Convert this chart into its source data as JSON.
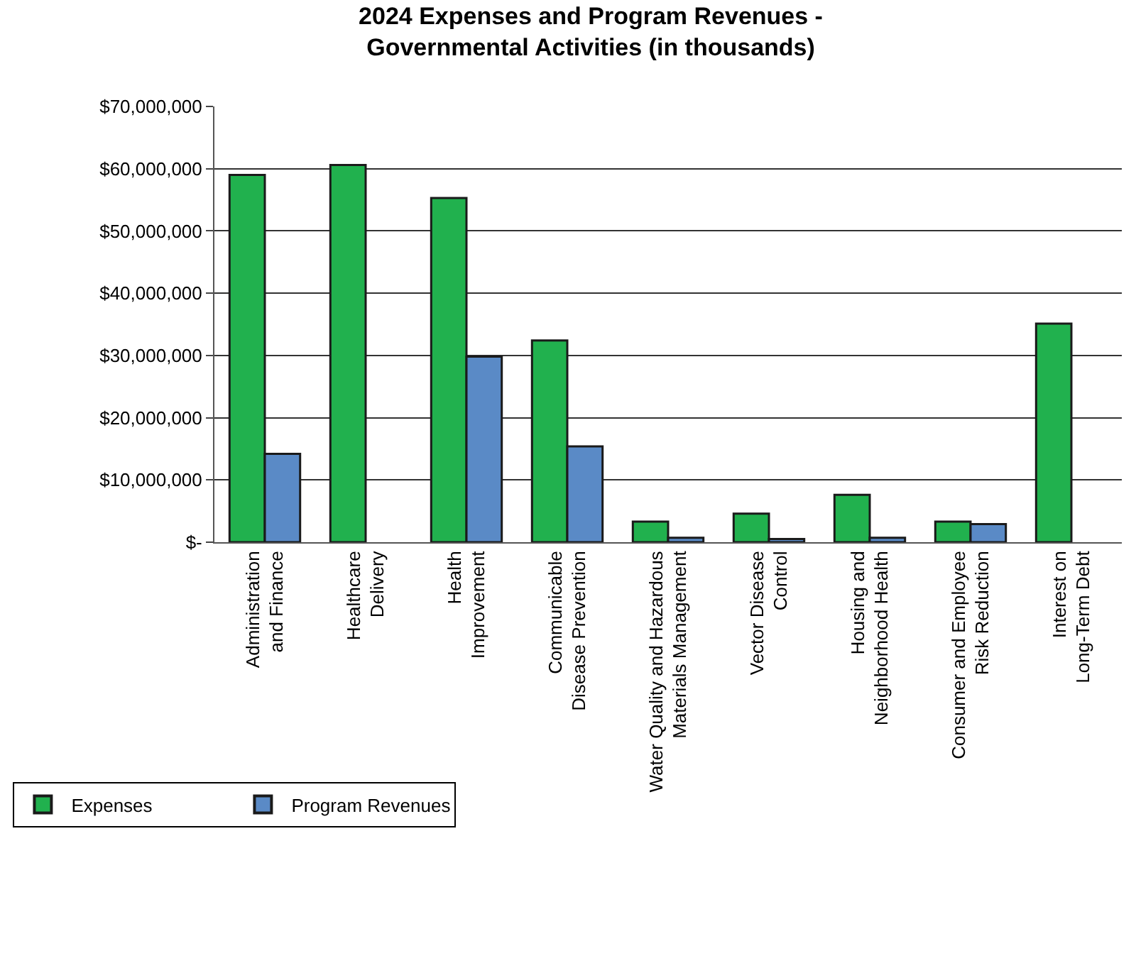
{
  "chart_data": {
    "type": "bar",
    "title": "2024 Expenses and Program Revenues -\nGovernmental Activities (in thousands)",
    "categories": [
      "Administration\nand Finance",
      "Healthcare\nDelivery",
      "Health\nImprovement",
      "Communicable\nDisease Prevention",
      "Water Quality and Hazardous\nMaterials Management",
      "Vector Disease\nControl",
      "Housing and\nNeighborhood Health",
      "Consumer and Employee\nRisk Reduction",
      "Interest on\nLong-Term Debt"
    ],
    "series": [
      {
        "name": "Expenses",
        "color": "#21b14e",
        "values": [
          59000000,
          60600000,
          55300000,
          32400000,
          3300000,
          4600000,
          7600000,
          3300000,
          35100000
        ]
      },
      {
        "name": "Program Revenues",
        "color": "#5a8ac6",
        "values": [
          14200000,
          null,
          29800000,
          15400000,
          700000,
          500000,
          700000,
          2900000,
          null
        ]
      }
    ],
    "ylim": [
      0,
      70000000
    ],
    "yticks": [
      {
        "value": 0,
        "label": "$-"
      },
      {
        "value": 10000000,
        "label": "$10,000,000"
      },
      {
        "value": 20000000,
        "label": "$20,000,000"
      },
      {
        "value": 30000000,
        "label": "$30,000,000"
      },
      {
        "value": 40000000,
        "label": "$40,000,000"
      },
      {
        "value": 50000000,
        "label": "$50,000,000"
      },
      {
        "value": 60000000,
        "label": "$60,000,000"
      },
      {
        "value": 70000000,
        "label": "$70,000,000"
      }
    ],
    "grid": "y",
    "legend": "bottom left"
  }
}
